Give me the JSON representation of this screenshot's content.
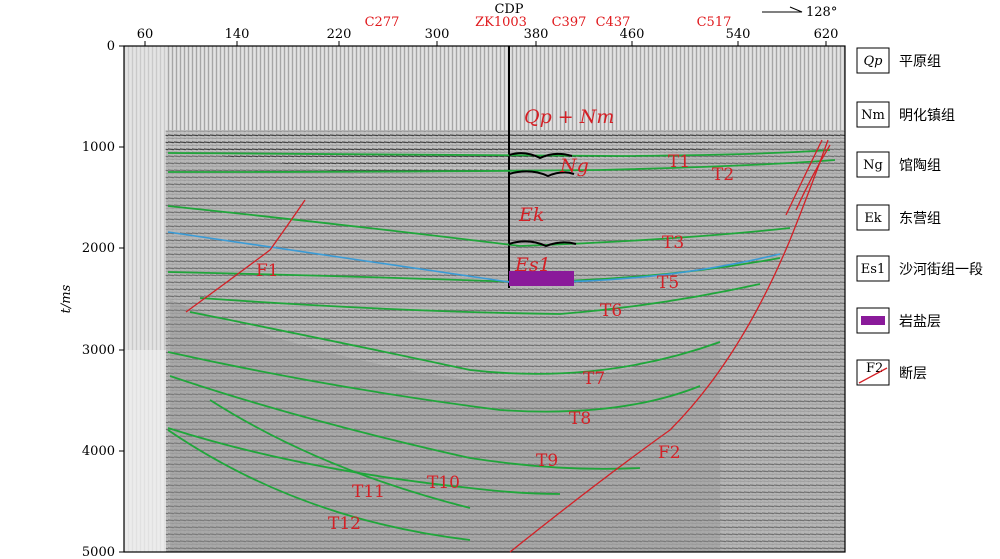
{
  "figure": {
    "cdp_title": "CDP",
    "direction_label": "128°",
    "time_axis_label": "t/ms",
    "cdp_ticks": [
      "60",
      "140",
      "220",
      "300",
      "380",
      "460",
      "540",
      "620"
    ],
    "time_ticks": [
      "0",
      "1000",
      "2000",
      "3000",
      "4000",
      "5000"
    ],
    "wells": [
      "C277",
      "ZK1003",
      "C397",
      "C437",
      "C517"
    ],
    "horizons": [
      "T1",
      "T2",
      "T3",
      "T5",
      "T6",
      "T7",
      "T8",
      "T9",
      "T10",
      "T11",
      "T12"
    ],
    "faults": [
      "F1",
      "F2"
    ],
    "formations": {
      "qp_nm": "Qp + Nm",
      "ng": "Ng",
      "ek": "Ek",
      "es1": "Es1"
    },
    "legend": [
      {
        "key": "Qp",
        "label": "平原组"
      },
      {
        "key": "Nm",
        "label": "明化镇组"
      },
      {
        "key": "Ng",
        "label": "馆陶组"
      },
      {
        "key": "Ek",
        "label": "东营组"
      },
      {
        "key": "Es1",
        "label": "沙河街组一段"
      },
      {
        "key": "",
        "label": "岩盐层"
      },
      {
        "key": "F2",
        "label": "断层"
      }
    ],
    "colors": {
      "horizon": "#1fa63a",
      "fault": "#d42026",
      "label": "#d42026",
      "salt": "#8a1a9a",
      "salt_top": "#3a9bd6"
    }
  }
}
